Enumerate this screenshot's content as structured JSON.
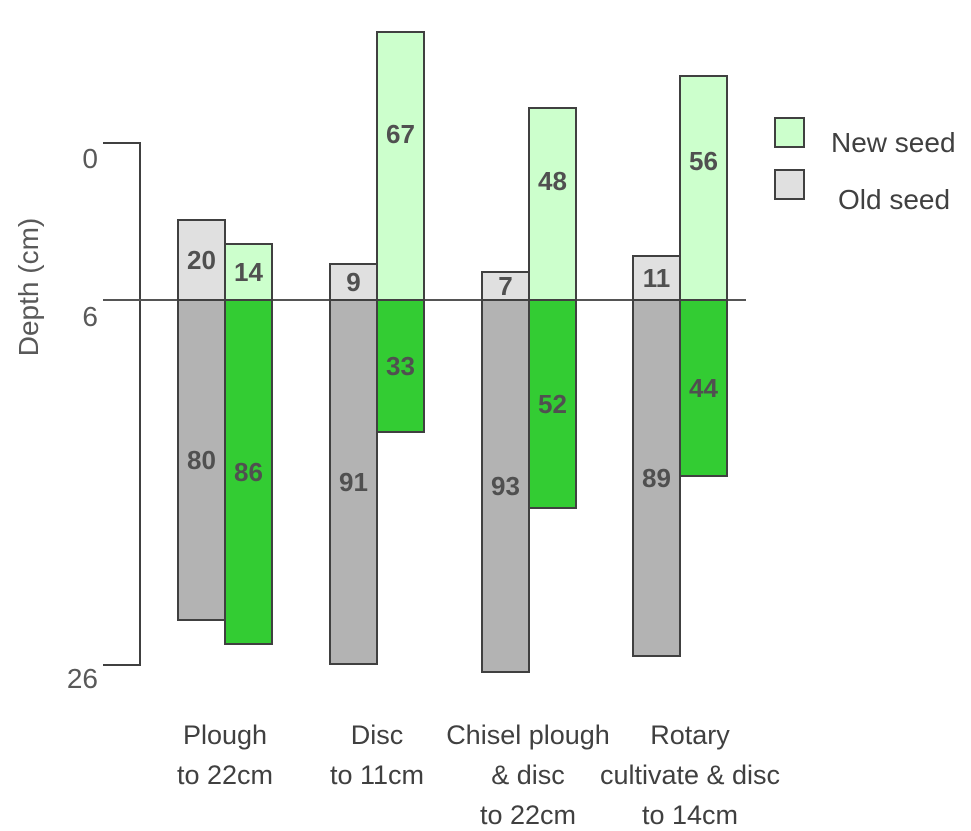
{
  "chart_data": {
    "type": "bar",
    "ylabel": "Depth (cm)",
    "y_ticks": [
      "0",
      "6",
      "26"
    ],
    "categories": [
      [
        "Plough",
        "to 22cm"
      ],
      [
        "Disc",
        "to 11cm"
      ],
      [
        "Chisel plough",
        "& disc",
        "to 22cm"
      ],
      [
        "Rotary",
        "cultivate & disc",
        "to 14cm"
      ]
    ],
    "series": [
      {
        "name": "Old seed",
        "above_6cm": [
          20,
          9,
          7,
          11
        ],
        "below_6cm": [
          80,
          91,
          93,
          89
        ]
      },
      {
        "name": "New seed",
        "above_6cm": [
          14,
          67,
          48,
          56
        ],
        "below_6cm": [
          86,
          33,
          52,
          44
        ]
      }
    ],
    "colors": {
      "old_above": "#e0e0e0",
      "old_below": "#b3b3b3",
      "new_above": "#ccffcc",
      "new_below": "#33cc33",
      "outline": "#404040"
    },
    "legend_placement": "top-right",
    "grid": false
  }
}
